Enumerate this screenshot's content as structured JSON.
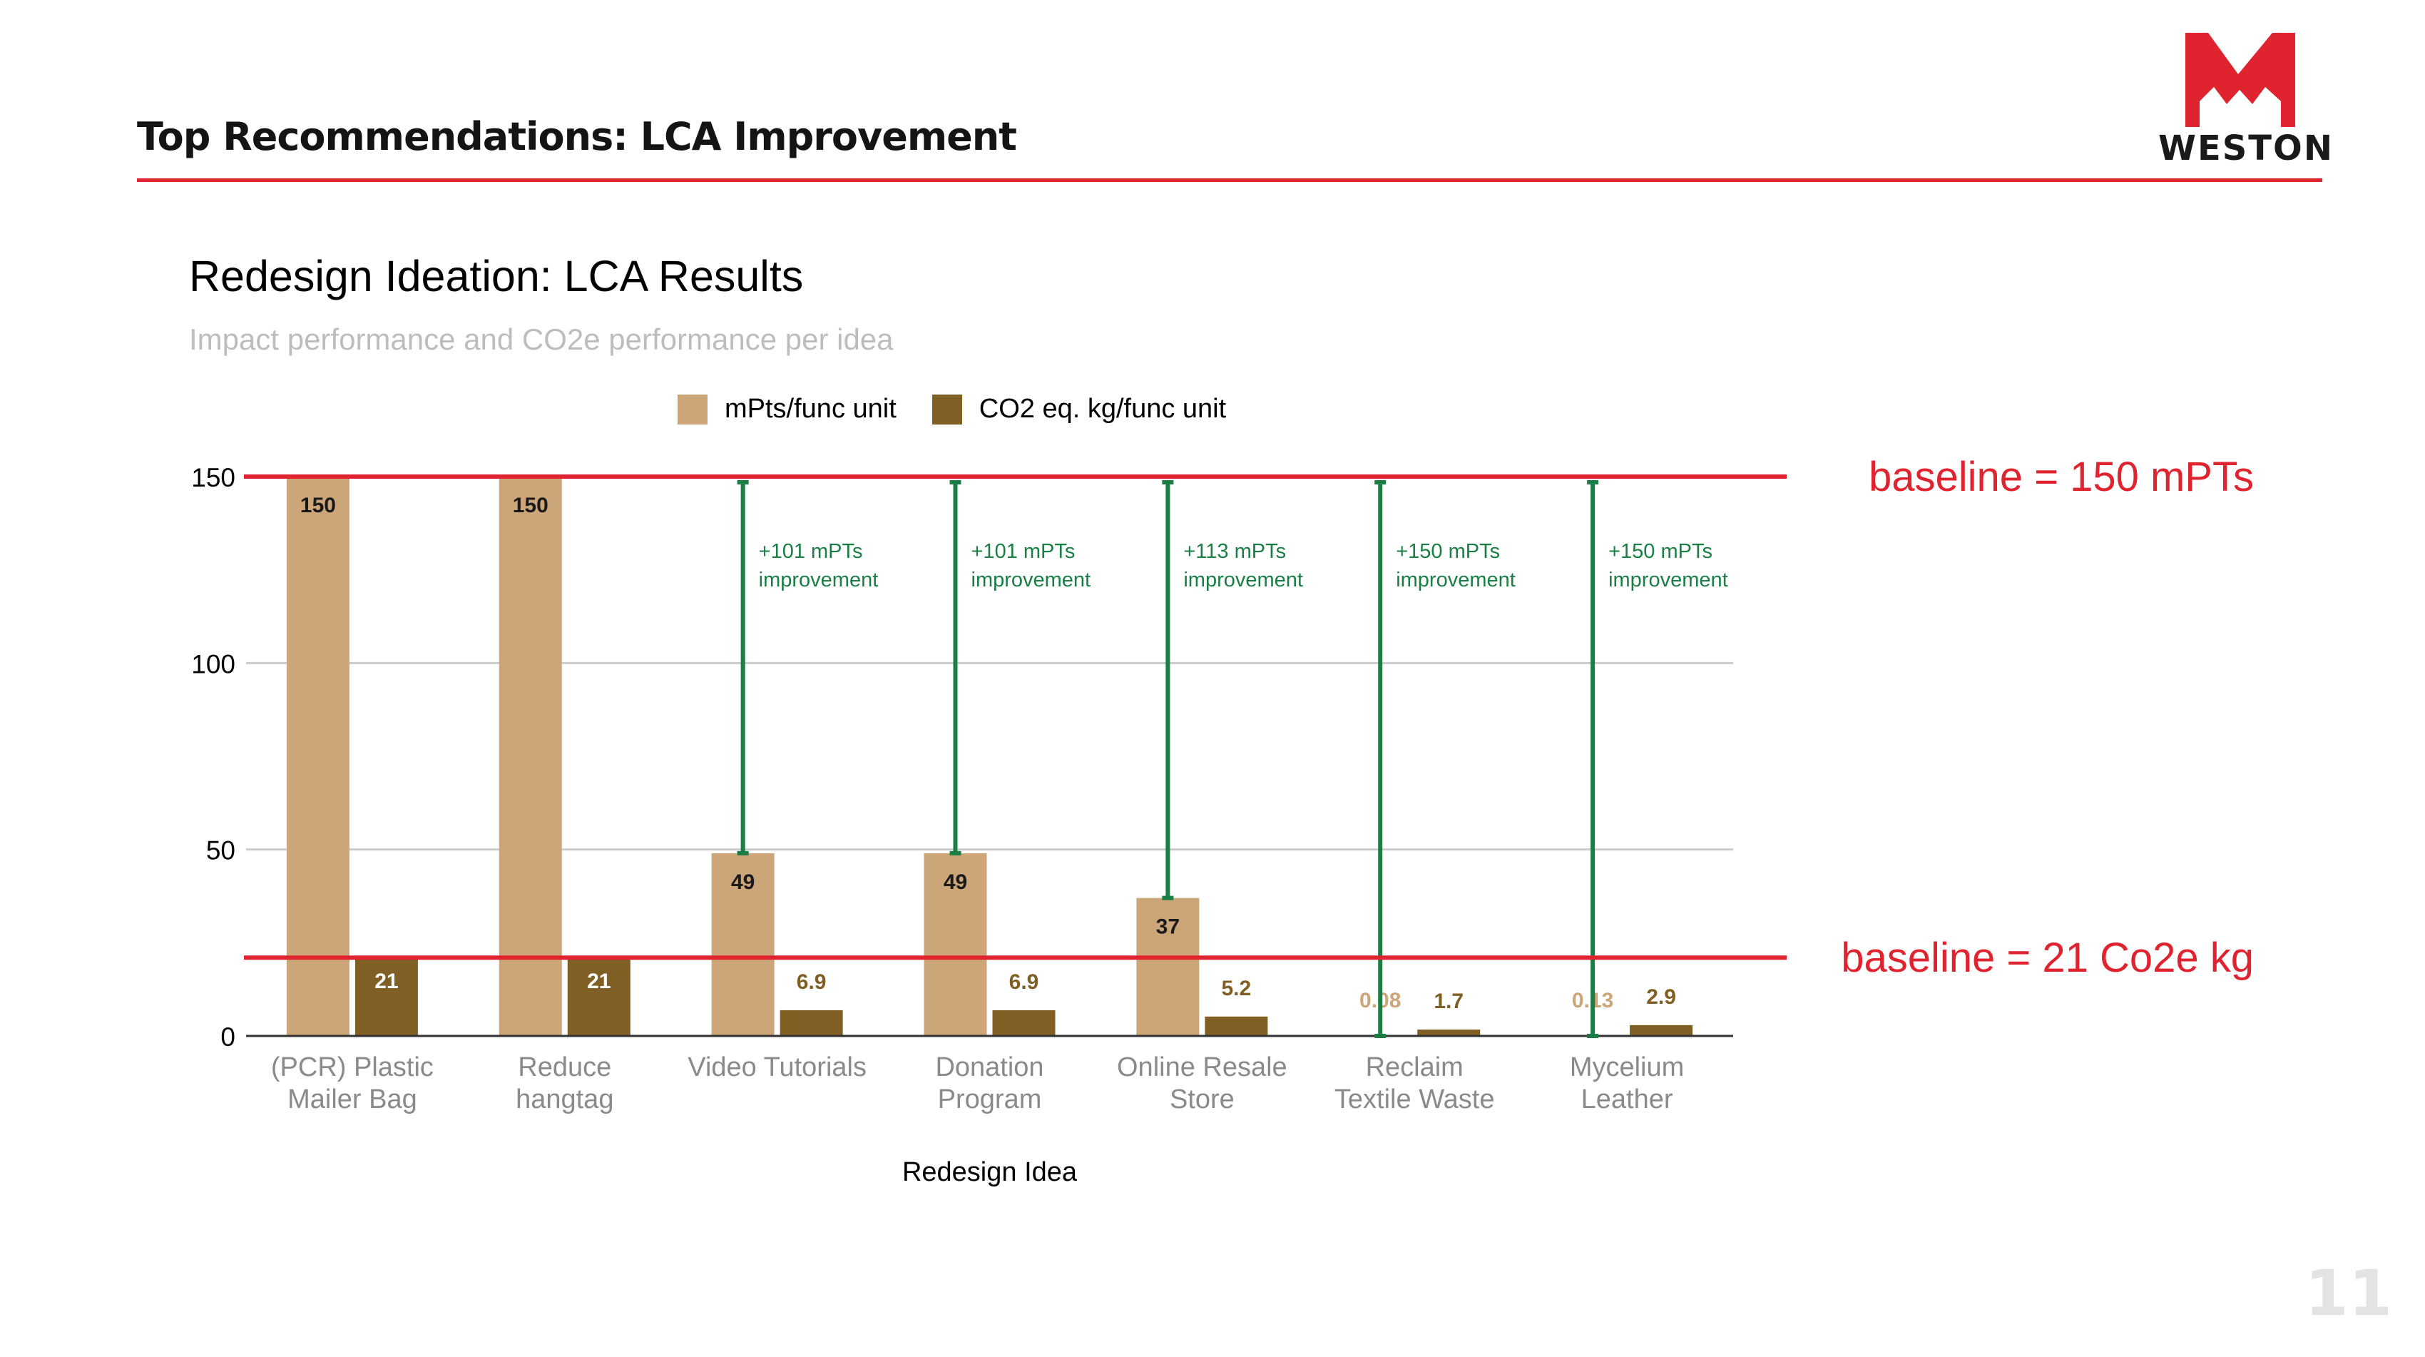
{
  "header": {
    "title": "Top Recommendations: LCA Improvement",
    "logo_text": "WESTON"
  },
  "page_number": "11",
  "colors": {
    "accent_red": "#e0242f",
    "mpts": "#cca678",
    "co2": "#7f5f24",
    "improvement": "#1b7f45"
  },
  "chart_data": {
    "type": "bar",
    "title": "Redesign Ideation: LCA Results",
    "subtitle": "Impact performance and CO2e performance per idea",
    "xlabel": "Redesign Idea",
    "ylabel": "",
    "ylim": [
      0,
      150
    ],
    "yticks": [
      0,
      50,
      100,
      150
    ],
    "ytick_labels": [
      "0",
      "50",
      "100",
      "150"
    ],
    "categories": [
      [
        "(PCR) Plastic",
        "Mailer Bag"
      ],
      [
        "Reduce",
        "hangtag"
      ],
      [
        "Video Tutorials"
      ],
      [
        "Donation",
        "Program"
      ],
      [
        "Online Resale",
        "Store"
      ],
      [
        "Reclaim",
        "Textile Waste"
      ],
      [
        "Mycelium",
        "Leather"
      ]
    ],
    "series": [
      {
        "name": "mPts/func unit",
        "values": [
          150,
          150,
          49,
          49,
          37,
          0.08,
          0.13
        ],
        "labels": [
          "150",
          "150",
          "49",
          "49",
          "37",
          "0.08",
          "0.13"
        ]
      },
      {
        "name": "CO2 eq. kg/func unit",
        "values": [
          21,
          21,
          6.9,
          6.9,
          5.2,
          1.7,
          2.9
        ],
        "labels": [
          "21",
          "21",
          "6.9",
          "6.9",
          "5.2",
          "1.7",
          "2.9"
        ]
      }
    ],
    "baselines": [
      {
        "value": 150,
        "label": "baseline = 150 mPTs"
      },
      {
        "value": 21,
        "label": "baseline = 21 Co2e kg"
      }
    ],
    "improvements": [
      {
        "category_index": 2,
        "from": 49,
        "to": 150,
        "label_line1": "+101 mPTs",
        "label_line2": "improvement"
      },
      {
        "category_index": 3,
        "from": 49,
        "to": 150,
        "label_line1": "+101 mPTs",
        "label_line2": "improvement"
      },
      {
        "category_index": 4,
        "from": 37,
        "to": 150,
        "label_line1": "+113 mPTs",
        "label_line2": "improvement"
      },
      {
        "category_index": 5,
        "from": 0,
        "to": 150,
        "label_line1": "+150 mPTs",
        "label_line2": "improvement"
      },
      {
        "category_index": 6,
        "from": 0,
        "to": 150,
        "label_line1": "+150 mPTs",
        "label_line2": "improvement"
      }
    ]
  }
}
